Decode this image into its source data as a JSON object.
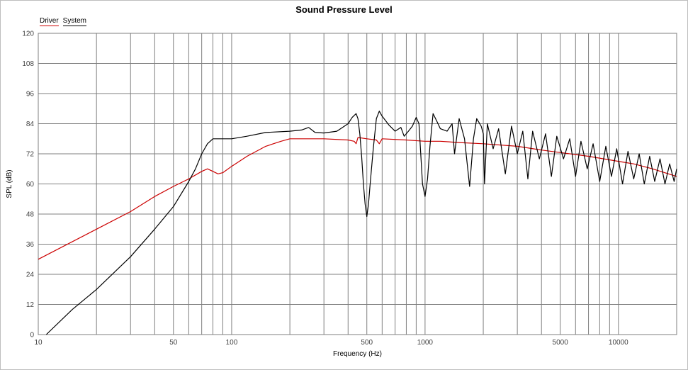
{
  "chart_data": {
    "type": "line",
    "title": "Sound Pressure Level",
    "xlabel": "Frequency (Hz)",
    "ylabel": "SPL (dB)",
    "x_scale": "log",
    "xlim": [
      10,
      20000
    ],
    "ylim": [
      0,
      120
    ],
    "grid": true,
    "legend_placement": "top-left",
    "x_tick_labels": [
      {
        "value": 10,
        "label": "10"
      },
      {
        "value": 50,
        "label": "50"
      },
      {
        "value": 100,
        "label": "100"
      },
      {
        "value": 500,
        "label": "500"
      },
      {
        "value": 1000,
        "label": "1000"
      },
      {
        "value": 5000,
        "label": "5000"
      },
      {
        "value": 10000,
        "label": "10000"
      }
    ],
    "y_ticks": [
      0,
      12,
      24,
      36,
      48,
      60,
      72,
      84,
      96,
      108,
      120
    ],
    "series": [
      {
        "name": "Driver",
        "color": "#cc0000",
        "points": [
          [
            10,
            30
          ],
          [
            20,
            42
          ],
          [
            30,
            49
          ],
          [
            40,
            55
          ],
          [
            50,
            59
          ],
          [
            60,
            62
          ],
          [
            70,
            65
          ],
          [
            75,
            66
          ],
          [
            80,
            65
          ],
          [
            85,
            64
          ],
          [
            90,
            64.5
          ],
          [
            100,
            67
          ],
          [
            120,
            71
          ],
          [
            150,
            75
          ],
          [
            180,
            77
          ],
          [
            200,
            78
          ],
          [
            300,
            78
          ],
          [
            400,
            77.5
          ],
          [
            430,
            77
          ],
          [
            440,
            76
          ],
          [
            450,
            78.5
          ],
          [
            500,
            78
          ],
          [
            560,
            77.5
          ],
          [
            580,
            76
          ],
          [
            600,
            78
          ],
          [
            800,
            77.5
          ],
          [
            1000,
            77
          ],
          [
            1200,
            77
          ],
          [
            1500,
            76.5
          ],
          [
            2000,
            76
          ],
          [
            3000,
            75
          ],
          [
            4000,
            73.5
          ],
          [
            5000,
            72.5
          ],
          [
            7000,
            71
          ],
          [
            10000,
            69
          ],
          [
            12000,
            68
          ],
          [
            15000,
            66
          ],
          [
            20000,
            63
          ]
        ]
      },
      {
        "name": "System",
        "color": "#000000",
        "points": [
          [
            11,
            0
          ],
          [
            15,
            10
          ],
          [
            20,
            18
          ],
          [
            30,
            31
          ],
          [
            40,
            42
          ],
          [
            50,
            51
          ],
          [
            60,
            61
          ],
          [
            65,
            66
          ],
          [
            70,
            72
          ],
          [
            75,
            76
          ],
          [
            80,
            78
          ],
          [
            85,
            78
          ],
          [
            100,
            78
          ],
          [
            120,
            79
          ],
          [
            150,
            80.5
          ],
          [
            200,
            81
          ],
          [
            230,
            81.5
          ],
          [
            250,
            82.5
          ],
          [
            270,
            80.5
          ],
          [
            300,
            80.3
          ],
          [
            350,
            81
          ],
          [
            400,
            84
          ],
          [
            420,
            86.5
          ],
          [
            440,
            88
          ],
          [
            450,
            86
          ],
          [
            460,
            80
          ],
          [
            470,
            71
          ],
          [
            480,
            60
          ],
          [
            490,
            52
          ],
          [
            500,
            47
          ],
          [
            510,
            52
          ],
          [
            520,
            60
          ],
          [
            540,
            74
          ],
          [
            560,
            86
          ],
          [
            580,
            89
          ],
          [
            600,
            87
          ],
          [
            650,
            83.5
          ],
          [
            700,
            81
          ],
          [
            750,
            82.5
          ],
          [
            780,
            79
          ],
          [
            820,
            81
          ],
          [
            860,
            83
          ],
          [
            900,
            86.5
          ],
          [
            930,
            84
          ],
          [
            950,
            72
          ],
          [
            970,
            60
          ],
          [
            1000,
            55
          ],
          [
            1030,
            62
          ],
          [
            1060,
            75
          ],
          [
            1100,
            88
          ],
          [
            1150,
            85
          ],
          [
            1200,
            82
          ],
          [
            1300,
            81
          ],
          [
            1380,
            84
          ],
          [
            1420,
            72
          ],
          [
            1500,
            86
          ],
          [
            1600,
            78
          ],
          [
            1700,
            59
          ],
          [
            1780,
            78
          ],
          [
            1850,
            86
          ],
          [
            1950,
            83
          ],
          [
            2000,
            80
          ],
          [
            2030,
            60
          ],
          [
            2100,
            84
          ],
          [
            2250,
            74
          ],
          [
            2400,
            82
          ],
          [
            2600,
            64
          ],
          [
            2800,
            83
          ],
          [
            3000,
            72
          ],
          [
            3200,
            81
          ],
          [
            3400,
            62
          ],
          [
            3600,
            81
          ],
          [
            3900,
            70
          ],
          [
            4200,
            80
          ],
          [
            4500,
            63
          ],
          [
            4800,
            79
          ],
          [
            5200,
            70
          ],
          [
            5600,
            78
          ],
          [
            6000,
            63
          ],
          [
            6400,
            77
          ],
          [
            6900,
            66
          ],
          [
            7400,
            76
          ],
          [
            8000,
            61
          ],
          [
            8600,
            75
          ],
          [
            9200,
            63
          ],
          [
            9800,
            74
          ],
          [
            10500,
            60
          ],
          [
            11200,
            73
          ],
          [
            12000,
            62
          ],
          [
            12800,
            72
          ],
          [
            13600,
            60
          ],
          [
            14500,
            71
          ],
          [
            15400,
            61
          ],
          [
            16400,
            70
          ],
          [
            17400,
            60
          ],
          [
            18400,
            68
          ],
          [
            19400,
            61
          ],
          [
            20000,
            66
          ]
        ]
      }
    ]
  }
}
